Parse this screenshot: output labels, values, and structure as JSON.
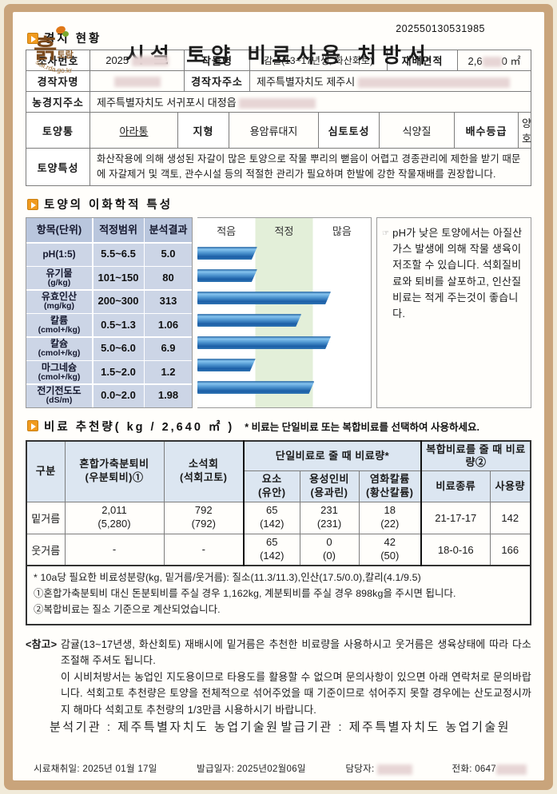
{
  "doc": {
    "number": "202550130531985",
    "title": "시설 토양 비료사용 처방서",
    "logo_main": "흙",
    "logo_sub": "토람",
    "logo_url": "soil.rda.go.kr"
  },
  "sections": {
    "field": "경지 현황",
    "soil": "토양의 이화학적 특성",
    "fert": "비료 추천량( kg / 2,640 ㎡ )",
    "fert_sub": "* 비료는 단일비료 또는 복합비료를 선택하여 사용하세요."
  },
  "field_table": {
    "survey_no_label": "조사번호",
    "survey_no_prefix": "2025",
    "crop_label": "작물명",
    "crop": "감귤(13~17년생, 화산회토)",
    "area_label": "재배면적",
    "area_prefix": "2,6",
    "area_suffix": "0 ㎡",
    "farmer_label": "경작자명",
    "farmer_addr_label": "경작자주소",
    "farmer_addr": "제주특별자치도 제주시",
    "land_addr_label": "농경지주소",
    "land_addr": "제주특별자치도 서귀포시 대정읍",
    "soil_series_label": "토양통",
    "soil_series": "아라통",
    "topo_label": "지형",
    "topo": "용암류대지",
    "subsoil_label": "심토토성",
    "subsoil": "식양질",
    "drain_label": "배수등급",
    "drain": "양호",
    "soil_char_label": "토양특성",
    "soil_char": "화산작용에 의해 생성된 자갈이 많은 토양으로 작물 뿌리의 뻗음이 어렵고 경종관리에 제한을 받기 때문에 자갈제거 및 객토, 관수시설 등의 적절한 관리가 필요하며 한발에 강한 작물재배를 권장합니다."
  },
  "chart_data": {
    "type": "bar",
    "col_headers": [
      "항목(단위)",
      "적정범위",
      "분석결과"
    ],
    "zone_labels": [
      "적음",
      "적정",
      "많음"
    ],
    "rows": [
      {
        "item": "pH(1:5)",
        "unit": "",
        "range": "5.5~6.5",
        "value": "5.0",
        "pct": 34.5
      },
      {
        "item": "유기물",
        "unit": "(g/kg)",
        "range": "101~150",
        "value": "80",
        "pct": 34.5
      },
      {
        "item": "유효인산",
        "unit": "(mg/kg)",
        "range": "200~300",
        "value": "313",
        "pct": 77
      },
      {
        "item": "칼륨",
        "unit": "(cmol+/kg)",
        "range": "0.5~1.3",
        "value": "1.06",
        "pct": 60
      },
      {
        "item": "칼슘",
        "unit": "(cmol+/kg)",
        "range": "5.0~6.0",
        "value": "6.9",
        "pct": 77
      },
      {
        "item": "마그네슘",
        "unit": "(cmol+/kg)",
        "range": "1.5~2.0",
        "value": "1.2",
        "pct": 33.5
      },
      {
        "item": "전기전도도",
        "unit": "(dS/m)",
        "range": "0.0~2.0",
        "value": "1.98",
        "pct": 67.5
      }
    ],
    "note_icon": "☞",
    "note": "pH가 낮은 토양에서는 아질산가스 발생에 의해 작물 생육이 저조할 수 있습니다. 석회질비료와 퇴비를 살포하고, 인산질 비료는 적게 주는것이 좋습니다."
  },
  "fert": {
    "headers": {
      "gubun": "구분",
      "compost1": "혼합가축분퇴비",
      "compost2": "(우분퇴비)①",
      "lime1": "소석회",
      "lime2": "(석회고토)",
      "single_group": "단일비료로 줄 때 비료량*",
      "urea1": "요소",
      "urea2": "(유안)",
      "phos1": "용성인비",
      "phos2": "(용과린)",
      "potas1": "염화칼륨",
      "potas2": "(황산칼륨)",
      "compound_group": "복합비료를 줄 때 비료량②",
      "npk": "비료종류",
      "amount": "사용량"
    },
    "rows": [
      {
        "label": "밑거름",
        "compost": "2,011",
        "compost2": "(5,280)",
        "lime": "792",
        "lime2": "(792)",
        "urea": "65",
        "urea2": "(142)",
        "phos": "231",
        "phos2": "(231)",
        "potas": "18",
        "potas2": "(22)",
        "npk": "21-17-17",
        "amount": "142"
      },
      {
        "label": "웃거름",
        "compost": "-",
        "compost2": "",
        "lime": "-",
        "lime2": "",
        "urea": "65",
        "urea2": "(142)",
        "phos": "0",
        "phos2": "(0)",
        "potas": "42",
        "potas2": "(50)",
        "npk": "18-0-16",
        "amount": "166"
      }
    ],
    "footnotes": [
      "* 10a당 필요한 비료성분량(kg, 밑거름/웃거름): 질소(11.3/11.3),인산(17.5/0.0),칼리(4.1/9.5)",
      "①혼합가축분퇴비 대신 돈분퇴비를 주실 경우 1,162kg, 계분퇴비를 주실 경우 898kg을 주시면 됩니다.",
      "②복합비료는 질소 기준으로 계산되었습니다."
    ]
  },
  "reference": {
    "label": "<참고>",
    "para1": "감귤(13~17년생, 화산회토) 재배시에 밑거름은 추천한 비료량을 사용하시고 웃거름은 생육상태에 따라 다소 조절해 주셔도 됩니다.",
    "para2": "이 시비처방서는 농업인 지도용이므로 타용도를 활용할 수 없으며 문의사항이 있으면 아래 연락처로 문의바랍니다. 석회고토 추천량은 토양을 전체적으로 섞어주었을 때 기준이므로 섞어주지 못할 경우에는 산도교정시까지 해마다 석회고토 추천량의 1/3만큼 시용하시기 바랍니다."
  },
  "bottom": {
    "analysis_org": "분석기관 : 제주특별자치도 농업기술원",
    "issue_org": "발급기관 : 제주특별자치도 농업기술원",
    "sample_date": "시료채취일: 2025년 01월 17일",
    "issue_date": "발급일자: 2025년02월06일",
    "manager_label": "담당자:",
    "phone_label": "전화: 0647"
  }
}
